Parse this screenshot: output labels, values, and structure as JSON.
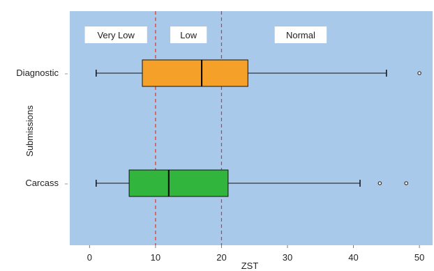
{
  "chart_data": {
    "type": "boxplot",
    "title": "",
    "xlabel": "ZST",
    "ylabel": "Submissions",
    "xlim": [
      -3,
      52
    ],
    "xticks": [
      0,
      10,
      20,
      30,
      40,
      50
    ],
    "grid": false,
    "background_color": "#a9c9ea",
    "threshold_color": "#d9342b",
    "thresholds": [
      10,
      20
    ],
    "regions": [
      {
        "label": "Very Low",
        "x": 4
      },
      {
        "label": "Low",
        "x": 15
      },
      {
        "label": "Normal",
        "x": 32
      }
    ],
    "categories": [
      "Diagnostic",
      "Carcass"
    ],
    "boxes": [
      {
        "category": "Diagnostic",
        "color": "#f5a129",
        "whisker_low": 1,
        "q1": 8,
        "median": 17,
        "q3": 24,
        "whisker_high": 45,
        "outliers": [
          50
        ]
      },
      {
        "category": "Carcass",
        "color": "#32b53d",
        "whisker_low": 1,
        "q1": 6,
        "median": 12,
        "q3": 21,
        "whisker_high": 41,
        "outliers": [
          44,
          48
        ]
      }
    ]
  }
}
